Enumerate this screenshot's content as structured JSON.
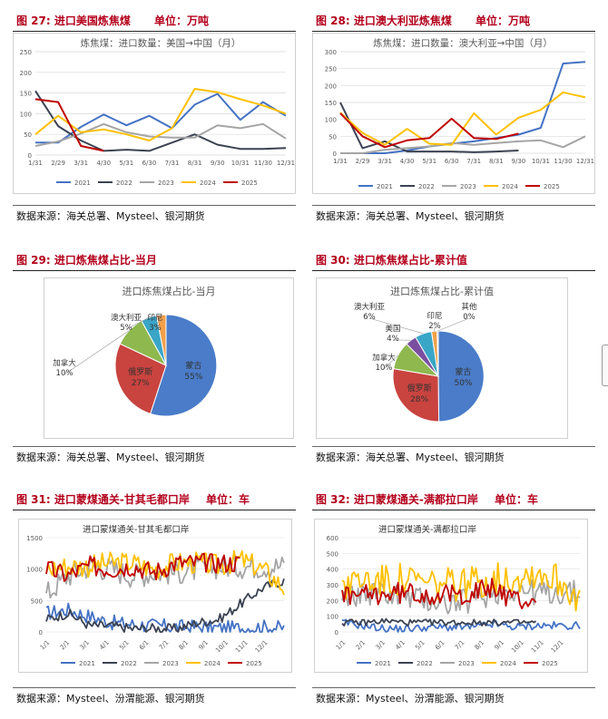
{
  "panels": [
    {
      "fig_title": "图 27: 进口美国炼焦煤",
      "unit": "单位：万吨",
      "source": "数据来源：海关总署、Mysteel、银河期货",
      "chart_data": {
        "type": "line",
        "title": "炼焦煤：进口数量：美国→中国（月）",
        "categories": [
          "1/31",
          "2/29",
          "3/31",
          "4/30",
          "5/31",
          "6/30",
          "7/31",
          "8/31",
          "9/30",
          "10/31",
          "11/30",
          "12/31"
        ],
        "ylim": [
          0,
          250
        ],
        "yticks": [
          0,
          50,
          100,
          150,
          200,
          250
        ],
        "series": [
          {
            "name": "2021",
            "color": "#4472c4",
            "values": [
              30,
              30,
              68,
              98,
              72,
              95,
              65,
              122,
              148,
              85,
              128,
              95
            ]
          },
          {
            "name": "2022",
            "color": "#3b4252",
            "values": [
              155,
              70,
              35,
              10,
              13,
              10,
              30,
              50,
              25,
              15,
              15,
              17
            ]
          },
          {
            "name": "2023",
            "color": "#a5a5a5",
            "values": [
              22,
              33,
              52,
              75,
              55,
              45,
              42,
              42,
              72,
              65,
              75,
              40
            ]
          },
          {
            "name": "2024",
            "color": "#ffc000",
            "values": [
              50,
              95,
              55,
              62,
              50,
              35,
              65,
              160,
              152,
              135,
              120,
              100
            ]
          },
          {
            "name": "2025",
            "color": "#c00000",
            "values": [
              135,
              128,
              22,
              10,
              null,
              null,
              null,
              null,
              null,
              null,
              null,
              null
            ]
          }
        ]
      }
    },
    {
      "fig_title": "图 28: 进口澳大利亚炼焦煤",
      "unit": "单位：万吨",
      "source": "数据来源：海关总署、Mysteel、银河期货",
      "chart_data": {
        "type": "line",
        "title": "炼焦煤：进口数量：澳大利亚→中国（月）",
        "categories": [
          "1/31",
          "2/29",
          "3/31",
          "4/30",
          "5/31",
          "6/30",
          "7/31",
          "8/31",
          "9/30",
          "10/31",
          "11/30",
          "12/31"
        ],
        "ylim": [
          0,
          300
        ],
        "yticks": [
          0,
          50,
          100,
          150,
          200,
          250,
          300
        ],
        "series": [
          {
            "name": "2021",
            "color": "#4472c4",
            "values": [
              0,
              0,
              0,
              8,
              20,
              28,
              35,
              45,
              55,
              75,
              265,
              270
            ]
          },
          {
            "name": "2022",
            "color": "#3b4252",
            "values": [
              150,
              15,
              35,
              5,
              5,
              5,
              3,
              5,
              8,
              null,
              null,
              null
            ]
          },
          {
            "name": "2023",
            "color": "#a5a5a5",
            "values": [
              0,
              0,
              10,
              15,
              20,
              30,
              25,
              30,
              35,
              38,
              18,
              50
            ]
          },
          {
            "name": "2024",
            "color": "#ffc000",
            "values": [
              120,
              60,
              25,
              72,
              28,
              25,
              118,
              55,
              105,
              128,
              180,
              165
            ]
          },
          {
            "name": "2025",
            "color": "#c00000",
            "values": [
              118,
              50,
              18,
              38,
              45,
              102,
              45,
              42,
              58,
              null,
              null,
              null
            ]
          }
        ]
      }
    },
    {
      "fig_title": "图 29: 进口炼焦煤占比-当月",
      "source": "数据来源：海关总署、Mysteel、银河期货",
      "chart_data": {
        "type": "pie",
        "title": "进口炼焦煤占比-当月",
        "slices": [
          {
            "name": "蒙古",
            "value": 55,
            "label": "55%",
            "color": "#4a7cc9"
          },
          {
            "name": "俄罗斯",
            "value": 27,
            "label": "27%",
            "color": "#c9433f"
          },
          {
            "name": "加拿大",
            "value": 10,
            "label": "10%",
            "color": "#8fb84f"
          },
          {
            "name": "澳大利亚",
            "value": 5,
            "label": "5%",
            "color": "#3aa6c7"
          },
          {
            "name": "印尼",
            "value": 3,
            "label": "3%",
            "color": "#f3a04a"
          }
        ]
      }
    },
    {
      "fig_title": "图 30: 进口炼焦煤占比-累计值",
      "source": "数据来源：海关总署、Mysteel、银河期货",
      "chart_data": {
        "type": "pie",
        "title": "进口炼焦煤占比-累计值",
        "slices": [
          {
            "name": "蒙古",
            "value": 50,
            "label": "50%",
            "color": "#4a7cc9"
          },
          {
            "name": "俄罗斯",
            "value": 28,
            "label": "28%",
            "color": "#c9433f"
          },
          {
            "name": "加拿大",
            "value": 10,
            "label": "10%",
            "color": "#8fb84f"
          },
          {
            "name": "美国",
            "value": 4,
            "label": "4%",
            "color": "#7b4fa0"
          },
          {
            "name": "澳大利亚",
            "value": 6,
            "label": "6%",
            "color": "#3aa6c7"
          },
          {
            "name": "印尼",
            "value": 2,
            "label": "2%",
            "color": "#f3a04a"
          },
          {
            "name": "其他",
            "value": 0.4,
            "label": "0%",
            "color": "#5a6fa8"
          }
        ]
      }
    },
    {
      "fig_title": "图 31: 进口蒙煤通关-甘其毛都口岸",
      "unit": "单位：车",
      "source": "数据来源：Mysteel、汾渭能源、银河期货",
      "chart_data": {
        "type": "line",
        "title": "进口蒙煤通关-甘其毛都口岸",
        "categories": [
          "1/1",
          "2/1",
          "3/1",
          "4/1",
          "5/1",
          "6/1",
          "7/1",
          "8/1",
          "9/1",
          "10/1",
          "11/1",
          "12/1"
        ],
        "ylim": [
          0,
          1500
        ],
        "yticks": [
          0,
          500,
          1000,
          1500
        ],
        "series": [
          {
            "name": "2021",
            "color": "#4472c4",
            "level": [
              300,
              350,
              250,
              150,
              120,
              100,
              80,
              80,
              60,
              60,
              80,
              60
            ],
            "amp": 120
          },
          {
            "name": "2022",
            "color": "#3b4252",
            "level": [
              200,
              300,
              100,
              100,
              50,
              60,
              50,
              150,
              200,
              450,
              700,
              820
            ],
            "amp": 80
          },
          {
            "name": "2023",
            "color": "#a5a5a5",
            "level": [
              600,
              900,
              1050,
              1000,
              900,
              950,
              950,
              1000,
              1050,
              1050,
              1050,
              1050
            ],
            "amp": 200
          },
          {
            "name": "2024",
            "color": "#ffc000",
            "level": [
              1000,
              1050,
              1050,
              1100,
              1100,
              1000,
              1100,
              1100,
              1050,
              1150,
              1000,
              700
            ],
            "amp": 180
          },
          {
            "name": "2025",
            "color": "#c00000",
            "level": [
              1000,
              900,
              1050,
              1000,
              1050,
              950,
              1100,
              1100,
              1100,
              null,
              null,
              null
            ],
            "amp": 160
          }
        ]
      }
    },
    {
      "fig_title": "图 32: 进口蒙煤通关-满都拉口岸",
      "unit": "单位：车",
      "source": "数据来源：Mysteel、汾渭能源、银河期货",
      "chart_data": {
        "type": "line",
        "title": "进口蒙煤通关-满都拉口岸",
        "categories": [
          "1/1",
          "2/1",
          "3/1",
          "4/1",
          "5/1",
          "6/1",
          "7/1",
          "8/1",
          "9/1",
          "10/1",
          "11/1",
          "12/1"
        ],
        "ylim": [
          0,
          600
        ],
        "yticks": [
          0,
          100,
          200,
          300,
          400,
          500,
          600
        ],
        "series": [
          {
            "name": "2021",
            "color": "#4472c4",
            "level": [
              60,
              40,
              20,
              20,
              30,
              30,
              30,
              50,
              30,
              40,
              40,
              40
            ],
            "amp": 25
          },
          {
            "name": "2022",
            "color": "#3b4252",
            "level": [
              60,
              60,
              70,
              60,
              60,
              60,
              60,
              60,
              60,
              null,
              null,
              null
            ],
            "amp": 20
          },
          {
            "name": "2023",
            "color": "#a5a5a5",
            "level": [
              200,
              250,
              250,
              220,
              200,
              180,
              200,
              250,
              270,
              250,
              250,
              250
            ],
            "amp": 80
          },
          {
            "name": "2024",
            "color": "#ffc000",
            "level": [
              300,
              330,
              320,
              330,
              300,
              300,
              320,
              330,
              350,
              380,
              330,
              220
            ],
            "amp": 110
          },
          {
            "name": "2025",
            "color": "#c00000",
            "level": [
              220,
              230,
              240,
              250,
              240,
              230,
              250,
              280,
              200,
              null,
              null,
              null
            ],
            "amp": 70
          }
        ]
      }
    }
  ]
}
